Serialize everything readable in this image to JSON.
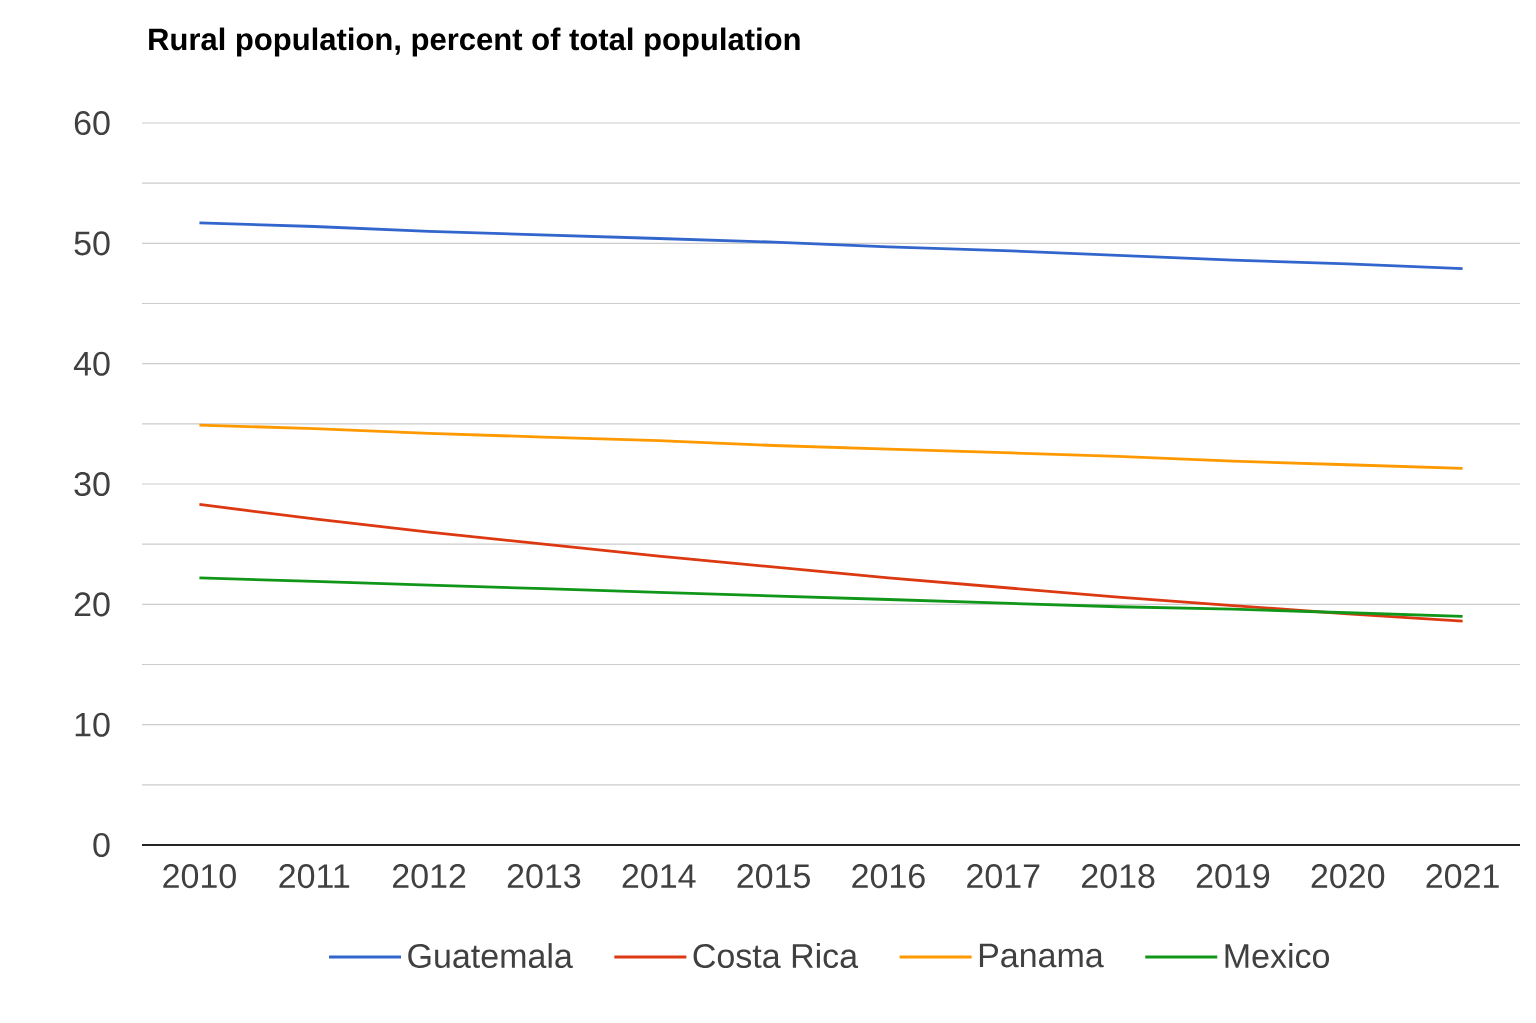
{
  "chart_data": {
    "type": "line",
    "title": "Rural population, percent of total population",
    "categories": [
      "2010",
      "2011",
      "2012",
      "2013",
      "2014",
      "2015",
      "2016",
      "2017",
      "2018",
      "2019",
      "2020",
      "2021"
    ],
    "series": [
      {
        "name": "Guatemala",
        "color": "#3366cc",
        "values": [
          51.7,
          51.4,
          51.0,
          50.7,
          50.4,
          50.1,
          49.7,
          49.4,
          49.0,
          48.6,
          48.3,
          47.9
        ]
      },
      {
        "name": "Costa Rica",
        "color": "#dc3912",
        "values": [
          28.3,
          27.1,
          26.0,
          25.0,
          24.0,
          23.1,
          22.2,
          21.4,
          20.6,
          19.9,
          19.2,
          18.6
        ]
      },
      {
        "name": "Panama",
        "color": "#ff9900",
        "values": [
          34.9,
          34.6,
          34.2,
          33.9,
          33.6,
          33.2,
          32.9,
          32.6,
          32.3,
          31.9,
          31.6,
          31.3
        ]
      },
      {
        "name": "Mexico",
        "color": "#109618",
        "values": [
          22.2,
          21.9,
          21.6,
          21.3,
          21.0,
          20.7,
          20.4,
          20.1,
          19.8,
          19.6,
          19.3,
          19.0
        ]
      }
    ],
    "ylim": [
      0,
      60
    ],
    "yticks": [
      0,
      {
        "value": 5,
        "label": null
      },
      10,
      {
        "value": 15,
        "label": null
      },
      20,
      {
        "value": 25,
        "label": null
      },
      30,
      {
        "value": 35,
        "label": null
      },
      40,
      {
        "value": 45,
        "label": null
      },
      50,
      {
        "value": 55,
        "label": null
      },
      60
    ],
    "grid": "y",
    "legend": "bottom",
    "marker": "none",
    "line_style": "solid"
  }
}
